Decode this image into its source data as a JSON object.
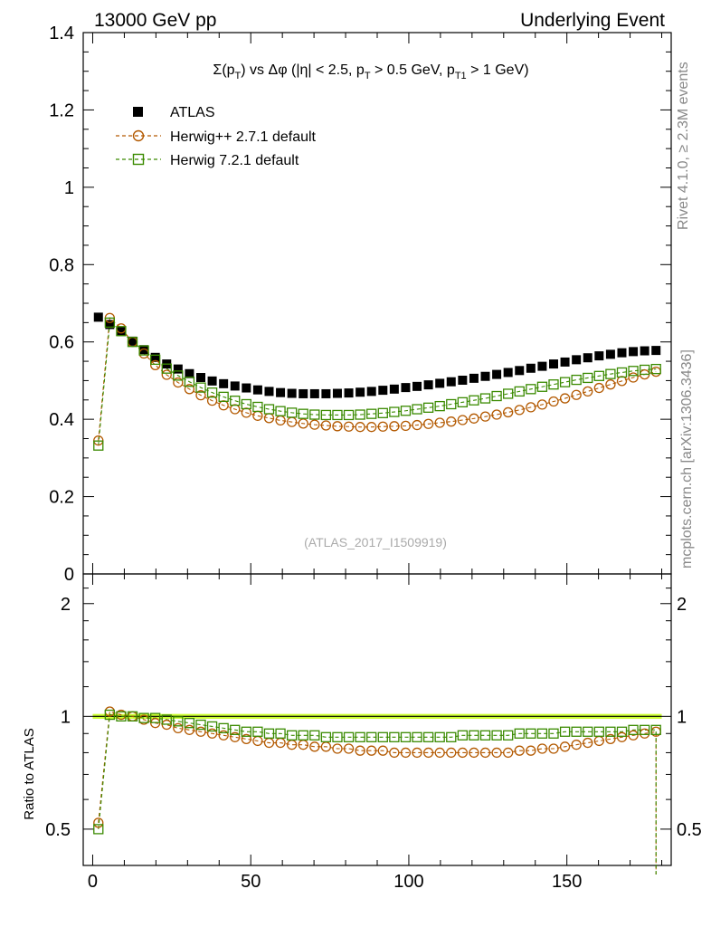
{
  "header": {
    "left": "13000 GeV pp",
    "right": "Underlying Event"
  },
  "side": {
    "rivet": "Rivet 4.1.0, ≥ 2.3M events",
    "mcplots": "mcplots.cern.ch [arXiv:1306.3436]"
  },
  "watermark": "(ATLAS_2017_I1509919)",
  "chart_data": {
    "type": "scatter",
    "title": "Σ(pT) vs Δφ (|η| < 2.5, pT > 0.5 GeV, pT1 > 1 GeV)",
    "title_parts": {
      "sigma": "Σ(p",
      "sub_T": "T",
      "vs": ") vs Δφ (|η| < 2.5, p",
      "cut1": " > 0.5 GeV, p",
      "sub_T1": "T1",
      "cut2": " > 1 GeV)"
    },
    "xlabel": "",
    "ylabel_main": "",
    "ylabel_ratio": "Ratio to ATLAS",
    "xlim": [
      -3,
      183
    ],
    "ylim_main": [
      0,
      1.4
    ],
    "ylim_ratio": [
      0.4,
      2.4
    ],
    "x_ticks": [
      0,
      50,
      100,
      150
    ],
    "y_ticks_main": [
      0,
      0.2,
      0.4,
      0.6,
      0.8,
      1,
      1.2,
      1.4
    ],
    "y_tick_labels_main": [
      "0",
      "0.2",
      "0.4",
      "0.6",
      "0.8",
      "1",
      "1.2",
      "1.4"
    ],
    "y_ticks_ratio": [
      0.5,
      1,
      2
    ],
    "y_tick_labels_ratio": [
      "0.5",
      "1",
      "2"
    ],
    "x": [
      1.8,
      5.4,
      9.0,
      12.6,
      16.2,
      19.8,
      23.4,
      27.0,
      30.6,
      34.2,
      37.8,
      41.4,
      45.0,
      48.6,
      52.2,
      55.8,
      59.4,
      63.0,
      66.6,
      70.2,
      73.8,
      77.4,
      81.0,
      84.6,
      88.2,
      91.8,
      95.4,
      99.0,
      102.6,
      106.2,
      109.8,
      113.4,
      117.0,
      120.6,
      124.2,
      127.8,
      131.4,
      135.0,
      138.6,
      142.2,
      145.8,
      149.4,
      153.0,
      156.6,
      160.2,
      163.8,
      167.4,
      171.0,
      174.6,
      178.2
    ],
    "series": [
      {
        "name": "ATLAS",
        "marker": "filled-square",
        "color": "#000000",
        "values": [
          0.664,
          0.645,
          0.627,
          0.602,
          0.58,
          0.56,
          0.543,
          0.53,
          0.518,
          0.508,
          0.499,
          0.492,
          0.486,
          0.481,
          0.476,
          0.472,
          0.469,
          0.467,
          0.466,
          0.466,
          0.466,
          0.467,
          0.468,
          0.47,
          0.472,
          0.475,
          0.478,
          0.482,
          0.485,
          0.489,
          0.493,
          0.497,
          0.501,
          0.506,
          0.511,
          0.516,
          0.521,
          0.526,
          0.532,
          0.537,
          0.543,
          0.548,
          0.554,
          0.559,
          0.564,
          0.568,
          0.572,
          0.575,
          0.577,
          0.578
        ]
      },
      {
        "name": "Herwig++ 2.7.1 default",
        "marker": "open-circle",
        "color": "#b35900",
        "values": [
          0.345,
          0.662,
          0.635,
          0.6,
          0.57,
          0.54,
          0.515,
          0.495,
          0.478,
          0.462,
          0.448,
          0.436,
          0.426,
          0.417,
          0.409,
          0.403,
          0.397,
          0.393,
          0.389,
          0.386,
          0.384,
          0.382,
          0.381,
          0.38,
          0.38,
          0.381,
          0.382,
          0.383,
          0.385,
          0.388,
          0.391,
          0.394,
          0.398,
          0.402,
          0.407,
          0.412,
          0.418,
          0.424,
          0.431,
          0.438,
          0.446,
          0.454,
          0.463,
          0.472,
          0.481,
          0.49,
          0.499,
          0.508,
          0.516,
          0.523
        ]
      },
      {
        "name": "Herwig 7.2.1 default",
        "marker": "open-square",
        "color": "#3a8a00",
        "values": [
          0.332,
          0.65,
          0.628,
          0.6,
          0.578,
          0.554,
          0.531,
          0.513,
          0.497,
          0.482,
          0.469,
          0.458,
          0.448,
          0.439,
          0.432,
          0.426,
          0.421,
          0.417,
          0.414,
          0.412,
          0.411,
          0.411,
          0.411,
          0.412,
          0.414,
          0.416,
          0.419,
          0.422,
          0.426,
          0.43,
          0.434,
          0.439,
          0.444,
          0.449,
          0.454,
          0.46,
          0.466,
          0.472,
          0.478,
          0.484,
          0.49,
          0.496,
          0.502,
          0.507,
          0.512,
          0.517,
          0.521,
          0.525,
          0.528,
          0.53
        ]
      }
    ],
    "ratio_series": [
      {
        "name": "Herwig++ 2.7.1 default",
        "values": [
          0.52,
          1.03,
          1.01,
          1.0,
          0.98,
          0.96,
          0.95,
          0.93,
          0.92,
          0.91,
          0.9,
          0.89,
          0.88,
          0.87,
          0.86,
          0.85,
          0.85,
          0.84,
          0.84,
          0.83,
          0.83,
          0.82,
          0.82,
          0.81,
          0.81,
          0.81,
          0.8,
          0.8,
          0.8,
          0.8,
          0.8,
          0.8,
          0.8,
          0.8,
          0.8,
          0.8,
          0.8,
          0.81,
          0.81,
          0.82,
          0.82,
          0.83,
          0.84,
          0.85,
          0.86,
          0.87,
          0.88,
          0.89,
          0.9,
          0.91
        ]
      },
      {
        "name": "Herwig 7.2.1 default",
        "values": [
          0.5,
          1.01,
          1.0,
          1.0,
          0.99,
          0.99,
          0.98,
          0.97,
          0.96,
          0.95,
          0.94,
          0.93,
          0.92,
          0.91,
          0.91,
          0.9,
          0.9,
          0.89,
          0.89,
          0.89,
          0.88,
          0.88,
          0.88,
          0.88,
          0.88,
          0.88,
          0.88,
          0.88,
          0.88,
          0.88,
          0.88,
          0.88,
          0.89,
          0.89,
          0.89,
          0.89,
          0.89,
          0.9,
          0.9,
          0.9,
          0.9,
          0.91,
          0.91,
          0.91,
          0.91,
          0.91,
          0.91,
          0.92,
          0.92,
          0.92
        ]
      }
    ],
    "ratio_tail": {
      "x_end": 178.2,
      "value_end": 0.3
    },
    "legend_position": "top-left",
    "ref_band_color": "#ccff33"
  }
}
